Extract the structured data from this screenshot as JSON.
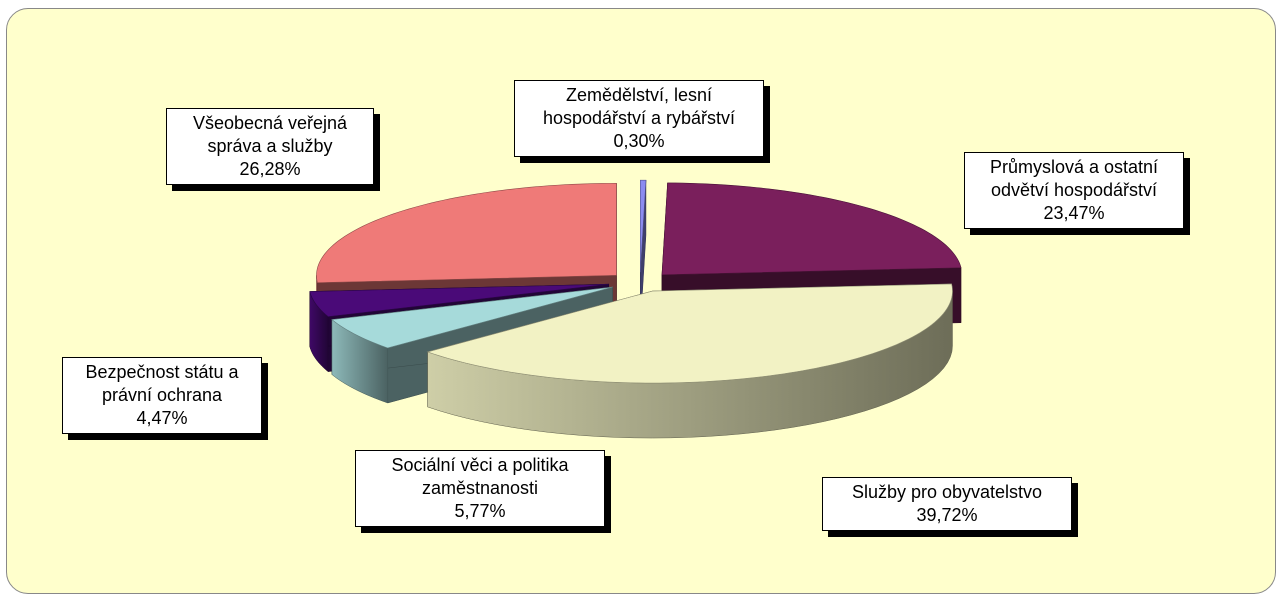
{
  "chart_data": {
    "type": "pie",
    "categories": [
      "Zemědělství, lesní hospodářství a rybářství",
      "Průmyslová a ostatní odvětví hospodářství",
      "Služby pro obyvatelstvo",
      "Sociální věci a politika zaměstnanosti",
      "Bezpečnost státu a právní ochrana",
      "Všeobecná veřejná správa a služby"
    ],
    "values": [
      0.3,
      23.47,
      39.72,
      5.77,
      4.47,
      26.28
    ],
    "value_labels": [
      "0,30%",
      "23,47%",
      "39,72%",
      "5,77%",
      "4,47%",
      "26,28%"
    ],
    "colors": [
      "#8c8cf0",
      "#7a1f5c",
      "#f2f2c4",
      "#a6dada",
      "#4a0a78",
      "#ef7a78"
    ]
  }
}
